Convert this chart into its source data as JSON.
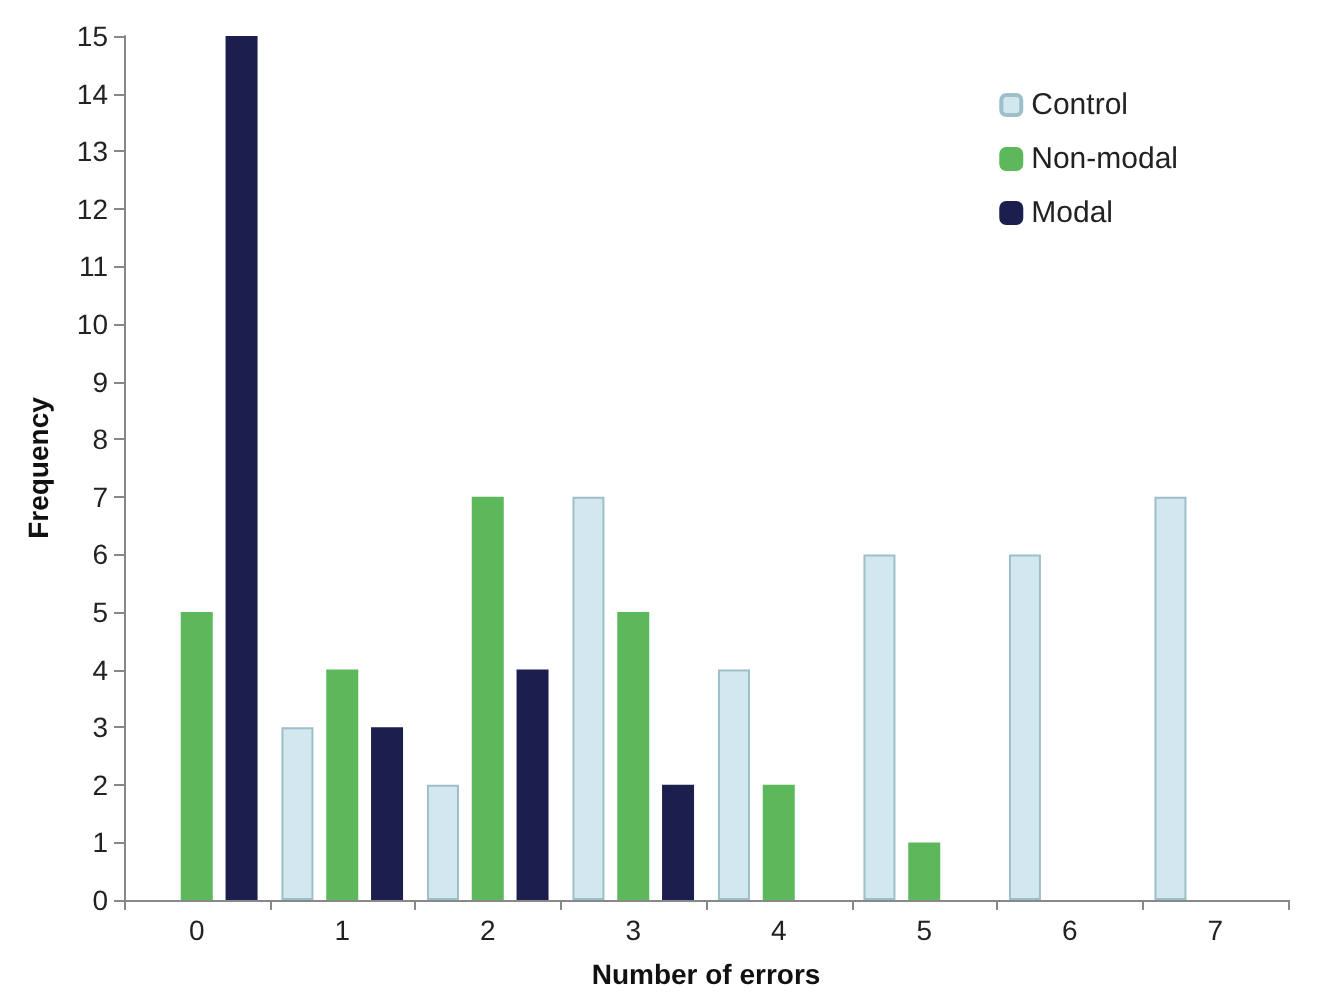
{
  "chart_data": {
    "type": "bar",
    "xlabel": "Number of errors",
    "ylabel": "Frequency",
    "categories": [
      "0",
      "1",
      "2",
      "3",
      "4",
      "5",
      "6",
      "7"
    ],
    "series": [
      {
        "name": "Control",
        "color": "#d3e8ee",
        "values": [
          0,
          3,
          2,
          7,
          4,
          6,
          6,
          7
        ]
      },
      {
        "name": "Non-modal",
        "color": "#5cb85a",
        "values": [
          5,
          4,
          7,
          5,
          2,
          1,
          0,
          0
        ]
      },
      {
        "name": "Modal",
        "color": "#1c1f4e",
        "values": [
          15,
          3,
          4,
          2,
          0,
          0,
          0,
          0
        ]
      }
    ],
    "ylim": [
      0,
      15
    ],
    "yticks": [
      0,
      1,
      2,
      3,
      4,
      5,
      6,
      7,
      8,
      9,
      10,
      11,
      12,
      13,
      14,
      15
    ],
    "grid": false,
    "legend": "top right"
  }
}
